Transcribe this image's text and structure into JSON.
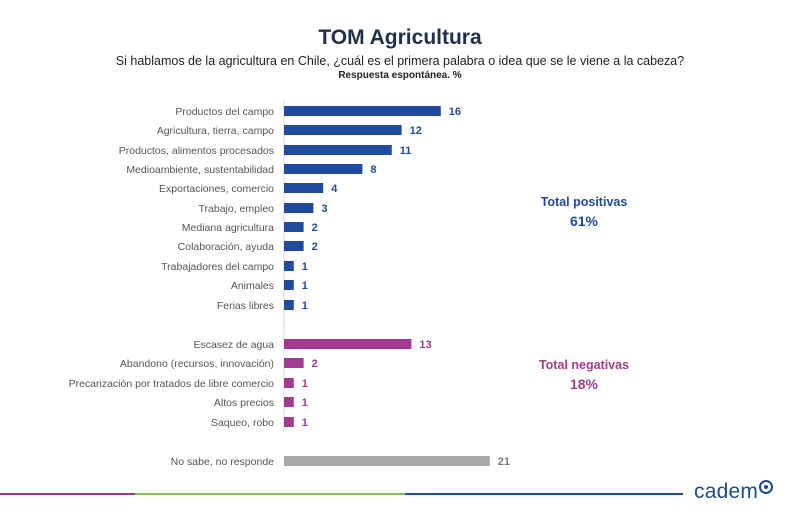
{
  "header": {
    "title": "TOM Agricultura",
    "subtitle": "Si hablamos de la agricultura en Chile, ¿cuál es el primera palabra o idea que se le viene a la cabeza?",
    "note": "Respuesta espontánea. %"
  },
  "totals": {
    "positive_label": "Total positivas",
    "positive_value": "61%",
    "negative_label": "Total negativas",
    "negative_value": "18%"
  },
  "brand": {
    "logo_text": "cadem"
  },
  "colors": {
    "positive": "#1f4aa0",
    "negative": "#a23b90",
    "neutral": "#a8a8a8",
    "label": "#555555"
  },
  "chart_data": {
    "type": "bar",
    "orientation": "horizontal",
    "xlim": [
      0,
      21
    ],
    "categories": [
      "Productos del campo",
      "Agricultura, tierra, campo",
      "Productos, alimentos procesados",
      "Medioambiente, sustentabilidad",
      "Exportaciones, comercio",
      "Trabajo, empleo",
      "Mediana agricultura",
      "Colaboración, ayuda",
      "Trabajadores del campo",
      "Animales",
      "Ferias libres",
      "Escasez de agua",
      "Abandono (recursos, innovación)",
      "Precarización por tratados de libre comercio",
      "Altos precios",
      "Saqueo, robo",
      "No sabe, no responde"
    ],
    "values": [
      16,
      12,
      11,
      8,
      4,
      3,
      2,
      2,
      1,
      1,
      1,
      13,
      2,
      1,
      1,
      1,
      21
    ],
    "groups": [
      "positive",
      "positive",
      "positive",
      "positive",
      "positive",
      "positive",
      "positive",
      "positive",
      "positive",
      "positive",
      "positive",
      "negative",
      "negative",
      "negative",
      "negative",
      "negative",
      "neutral"
    ]
  }
}
